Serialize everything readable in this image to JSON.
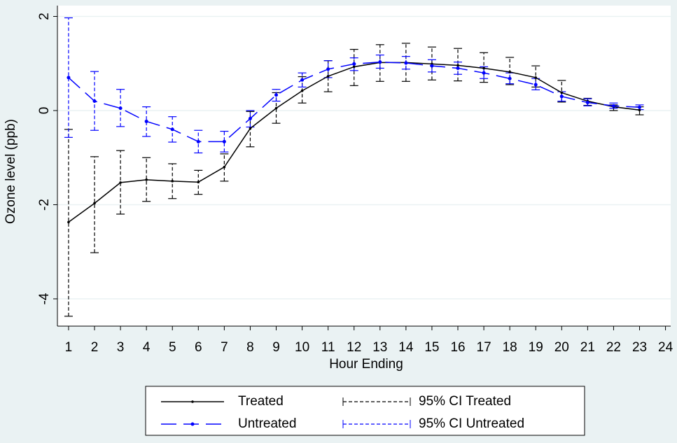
{
  "chart_data": {
    "type": "line",
    "x_label": "Hour Ending",
    "y_label": "Ozone level (ppb)",
    "x": [
      1,
      2,
      3,
      4,
      5,
      6,
      7,
      8,
      9,
      10,
      11,
      12,
      13,
      14,
      15,
      16,
      17,
      18,
      19,
      20,
      21,
      22,
      23
    ],
    "series": [
      {
        "name": "Treated",
        "color": "#000000",
        "values": [
          -2.37,
          -1.97,
          -1.53,
          -1.47,
          -1.5,
          -1.52,
          -1.2,
          -0.38,
          0.05,
          0.42,
          0.73,
          0.93,
          1.02,
          1.02,
          0.99,
          0.96,
          0.9,
          0.82,
          0.7,
          0.38,
          0.2,
          0.08,
          0.01
        ]
      },
      {
        "name": "Untreated",
        "color": "#0000ff",
        "values": [
          0.7,
          0.2,
          0.05,
          -0.23,
          -0.4,
          -0.66,
          -0.66,
          -0.17,
          0.33,
          0.65,
          0.88,
          0.99,
          1.03,
          1.01,
          0.95,
          0.9,
          0.8,
          0.68,
          0.55,
          0.3,
          0.17,
          0.1,
          0.07
        ]
      }
    ],
    "ci_series": [
      {
        "name": "95% CI Treated",
        "color": "#000000",
        "lower": [
          -4.37,
          -3.02,
          -2.2,
          -1.93,
          -1.87,
          -1.78,
          -1.5,
          -0.77,
          -0.27,
          0.16,
          0.4,
          0.53,
          0.62,
          0.62,
          0.65,
          0.63,
          0.6,
          0.55,
          0.5,
          0.18,
          0.11,
          0.0,
          -0.09
        ],
        "upper": [
          -0.4,
          -0.98,
          -0.85,
          -1.0,
          -1.13,
          -1.27,
          -0.92,
          -0.02,
          0.38,
          0.72,
          1.06,
          1.3,
          1.4,
          1.43,
          1.35,
          1.32,
          1.23,
          1.13,
          0.95,
          0.64,
          0.26,
          0.12,
          0.08
        ]
      },
      {
        "name": "95% CI Untreated",
        "color": "#0000ff",
        "lower": [
          -0.57,
          -0.42,
          -0.34,
          -0.55,
          -0.67,
          -0.9,
          -0.88,
          -0.35,
          0.2,
          0.5,
          0.7,
          0.85,
          0.9,
          0.88,
          0.82,
          0.77,
          0.68,
          0.57,
          0.44,
          0.2,
          0.1,
          0.05,
          0.02
        ],
        "upper": [
          1.97,
          0.83,
          0.45,
          0.08,
          -0.13,
          -0.42,
          -0.44,
          0.0,
          0.45,
          0.8,
          1.06,
          1.12,
          1.18,
          1.15,
          1.08,
          1.03,
          0.93,
          0.8,
          0.68,
          0.4,
          0.25,
          0.16,
          0.12
        ]
      }
    ],
    "xlim": [
      0.57,
      24.2
    ],
    "xticks": [
      1,
      2,
      3,
      4,
      5,
      6,
      7,
      8,
      9,
      10,
      11,
      12,
      13,
      14,
      15,
      16,
      17,
      18,
      19,
      20,
      21,
      22,
      23,
      24
    ],
    "ylim": [
      -4.58,
      2.23
    ],
    "yticks": [
      -4,
      -2,
      0,
      2
    ],
    "grid": true
  }
}
